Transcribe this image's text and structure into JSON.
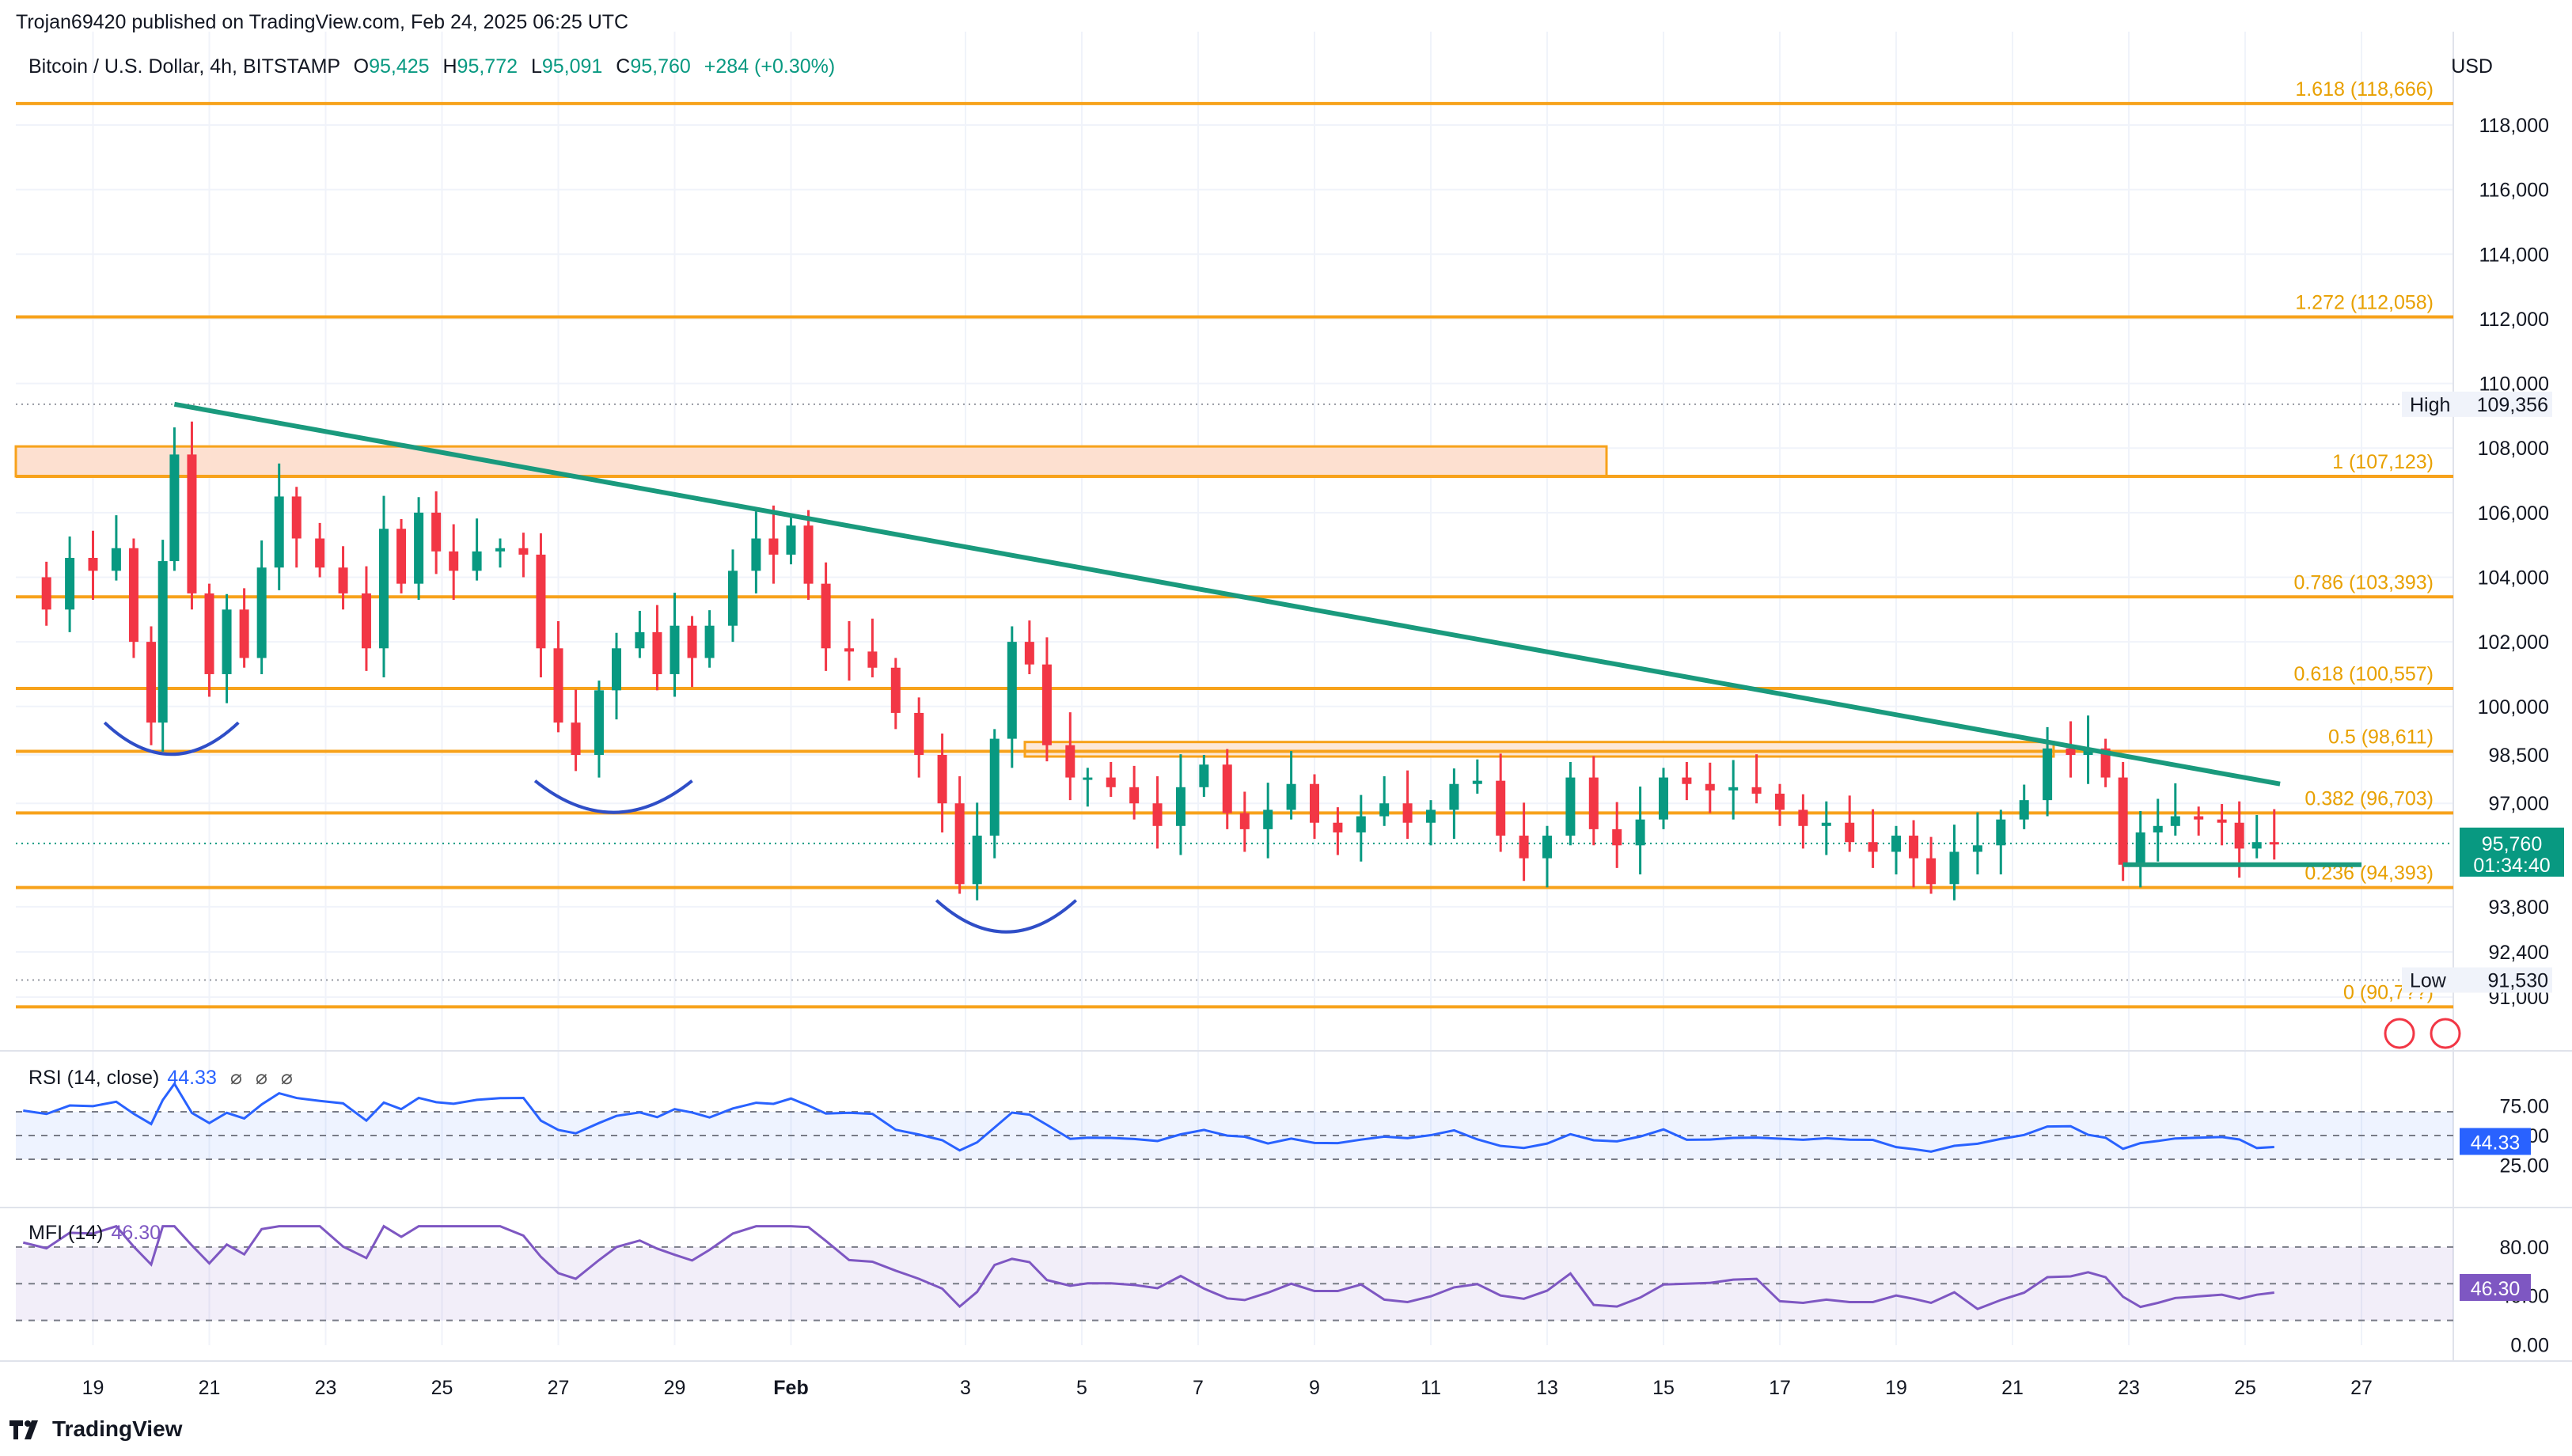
{
  "header": {
    "publisher": "Trojan69420 published on TradingView.com, Feb 24, 2025 06:25 UTC",
    "symbol": "Bitcoin / U.S. Dollar, 4h, BITSTAMP",
    "open_label": "O",
    "open": "95,425",
    "high_label": "H",
    "high": "95,772",
    "low_label": "L",
    "low": "95,091",
    "close_label": "C",
    "close": "95,760",
    "change": "+284 (+0.30%)",
    "currency": "USD",
    "controls": [
      "⌀",
      "⌀",
      "⌀"
    ]
  },
  "colors": {
    "up": "#089981",
    "down": "#f23645",
    "fib": "#f7a21b",
    "fib_text": "#e8a000",
    "trendline": "#1a9a7d",
    "arc": "#2f4ec7",
    "rsi": "#2962ff",
    "mfi": "#7e57c2",
    "zone_fill": "#fde0d0"
  },
  "price_axis": {
    "labels": [
      "118,000",
      "116,000",
      "114,000",
      "112,000",
      "110,000",
      "108,000",
      "106,000",
      "104,000",
      "102,000",
      "100,000",
      "98,500",
      "97,000",
      "93,800",
      "92,400",
      "91,000"
    ],
    "values": [
      118000,
      116000,
      114000,
      112000,
      110000,
      108000,
      106000,
      104000,
      102000,
      100000,
      98500,
      97000,
      93800,
      92400,
      91000
    ],
    "high_tag": {
      "label": "High",
      "value": "109,356"
    },
    "low_tag": {
      "label": "Low",
      "value": "91,530"
    },
    "last_price": {
      "value": "95,760",
      "countdown": "01:34:40"
    }
  },
  "time_axis": {
    "labels": [
      "19",
      "21",
      "23",
      "25",
      "27",
      "29",
      "Feb",
      "3",
      "5",
      "7",
      "9",
      "11",
      "13",
      "15",
      "17",
      "19",
      "21",
      "23",
      "25",
      "27"
    ],
    "days": [
      -13,
      -11,
      -9,
      -7,
      -5,
      -3,
      -1,
      2,
      4,
      6,
      8,
      10,
      12,
      14,
      16,
      18,
      20,
      22,
      24,
      26
    ]
  },
  "fib_levels": [
    {
      "label": "1.618 (118,666)",
      "value": 118666
    },
    {
      "label": "1.272 (112,058)",
      "value": 112058
    },
    {
      "label": "1 (107,123)",
      "value": 107123
    },
    {
      "label": "0.786 (103,393)",
      "value": 103393
    },
    {
      "label": "0.618 (100,557)",
      "value": 100557
    },
    {
      "label": "0.5 (98,611)",
      "value": 98611
    },
    {
      "label": "0.382 (96,703)",
      "value": 96703
    },
    {
      "label": "0.236 (94,393)",
      "value": 94393
    },
    {
      "label": "0 (90,7??)",
      "value": 90700
    }
  ],
  "rsi": {
    "label": "RSI (14, close)",
    "value": "44.33",
    "axis": [
      "75.00",
      "50.00",
      "25.00"
    ],
    "axis_values": [
      75,
      50,
      25
    ]
  },
  "mfi": {
    "label": "MFI (14)",
    "value": "46.30",
    "axis": [
      "80.00",
      "40.00",
      "0.00"
    ],
    "axis_values": [
      80,
      40,
      0
    ]
  },
  "brand": "TradingView",
  "chart_data": {
    "type": "candlestick",
    "title": "Bitcoin / U.S. Dollar, 4h, BITSTAMP",
    "ylabel": "USD",
    "ylim": [
      90500,
      119500
    ],
    "x_unit": "days from Feb 1, 2025",
    "series": [
      {
        "name": "BTC/USD 4h close (approx.)",
        "points": [
          [
            -14.2,
            104000
          ],
          [
            -13.8,
            103000
          ],
          [
            -13.4,
            104600
          ],
          [
            -13.0,
            104200
          ],
          [
            -12.6,
            104900
          ],
          [
            -12.3,
            102000
          ],
          [
            -12.0,
            99500
          ],
          [
            -11.8,
            104500
          ],
          [
            -11.6,
            107800
          ],
          [
            -11.3,
            103500
          ],
          [
            -11.0,
            101000
          ],
          [
            -10.7,
            103000
          ],
          [
            -10.4,
            101500
          ],
          [
            -10.1,
            104300
          ],
          [
            -9.8,
            106500
          ],
          [
            -9.5,
            105200
          ],
          [
            -9.1,
            104300
          ],
          [
            -8.7,
            103500
          ],
          [
            -8.3,
            101800
          ],
          [
            -8.0,
            105500
          ],
          [
            -7.7,
            103800
          ],
          [
            -7.4,
            106000
          ],
          [
            -7.1,
            104800
          ],
          [
            -6.8,
            104200
          ],
          [
            -6.4,
            104800
          ],
          [
            -6.0,
            104900
          ],
          [
            -5.6,
            104700
          ],
          [
            -5.3,
            101800
          ],
          [
            -5.0,
            99500
          ],
          [
            -4.7,
            98500
          ],
          [
            -4.3,
            100500
          ],
          [
            -4.0,
            101800
          ],
          [
            -3.6,
            102300
          ],
          [
            -3.3,
            101000
          ],
          [
            -3.0,
            102500
          ],
          [
            -2.7,
            101500
          ],
          [
            -2.4,
            102500
          ],
          [
            -2.0,
            104200
          ],
          [
            -1.6,
            105200
          ],
          [
            -1.3,
            104700
          ],
          [
            -1.0,
            105600
          ],
          [
            -0.7,
            103800
          ],
          [
            -0.4,
            101800
          ],
          [
            0.0,
            101700
          ],
          [
            0.4,
            101200
          ],
          [
            0.8,
            99800
          ],
          [
            1.2,
            98500
          ],
          [
            1.6,
            97000
          ],
          [
            1.9,
            94500
          ],
          [
            2.2,
            96000
          ],
          [
            2.5,
            99000
          ],
          [
            2.8,
            102000
          ],
          [
            3.1,
            101300
          ],
          [
            3.4,
            98800
          ],
          [
            3.8,
            97800
          ],
          [
            4.1,
            97800
          ],
          [
            4.5,
            97500
          ],
          [
            4.9,
            97000
          ],
          [
            5.3,
            96300
          ],
          [
            5.7,
            97500
          ],
          [
            6.1,
            98200
          ],
          [
            6.5,
            96700
          ],
          [
            6.8,
            96200
          ],
          [
            7.2,
            96800
          ],
          [
            7.6,
            97600
          ],
          [
            8.0,
            96400
          ],
          [
            8.4,
            96100
          ],
          [
            8.8,
            96600
          ],
          [
            9.2,
            97000
          ],
          [
            9.6,
            96400
          ],
          [
            10.0,
            96800
          ],
          [
            10.4,
            97600
          ],
          [
            10.8,
            97700
          ],
          [
            11.2,
            96000
          ],
          [
            11.6,
            95300
          ],
          [
            12.0,
            96000
          ],
          [
            12.4,
            97800
          ],
          [
            12.8,
            96200
          ],
          [
            13.2,
            95700
          ],
          [
            13.6,
            96500
          ],
          [
            14.0,
            97800
          ],
          [
            14.4,
            97600
          ],
          [
            14.8,
            97400
          ],
          [
            15.2,
            97500
          ],
          [
            15.6,
            97300
          ],
          [
            16.0,
            96800
          ],
          [
            16.4,
            96300
          ],
          [
            16.8,
            96400
          ],
          [
            17.2,
            95800
          ],
          [
            17.6,
            95500
          ],
          [
            18.0,
            96000
          ],
          [
            18.3,
            95300
          ],
          [
            18.6,
            94500
          ],
          [
            19.0,
            95500
          ],
          [
            19.4,
            95700
          ],
          [
            19.8,
            96500
          ],
          [
            20.2,
            97100
          ],
          [
            20.6,
            98700
          ],
          [
            21.0,
            98500
          ],
          [
            21.3,
            98700
          ],
          [
            21.6,
            97800
          ],
          [
            21.9,
            95100
          ],
          [
            22.2,
            96100
          ],
          [
            22.5,
            96300
          ],
          [
            22.8,
            96600
          ],
          [
            23.2,
            96500
          ],
          [
            23.6,
            96400
          ],
          [
            23.9,
            95600
          ],
          [
            24.2,
            95800
          ],
          [
            24.5,
            95760
          ]
        ]
      }
    ],
    "last": {
      "open": 95425,
      "high": 95772,
      "low": 95091,
      "close": 95760,
      "change": 284,
      "change_pct": 0.3
    }
  }
}
